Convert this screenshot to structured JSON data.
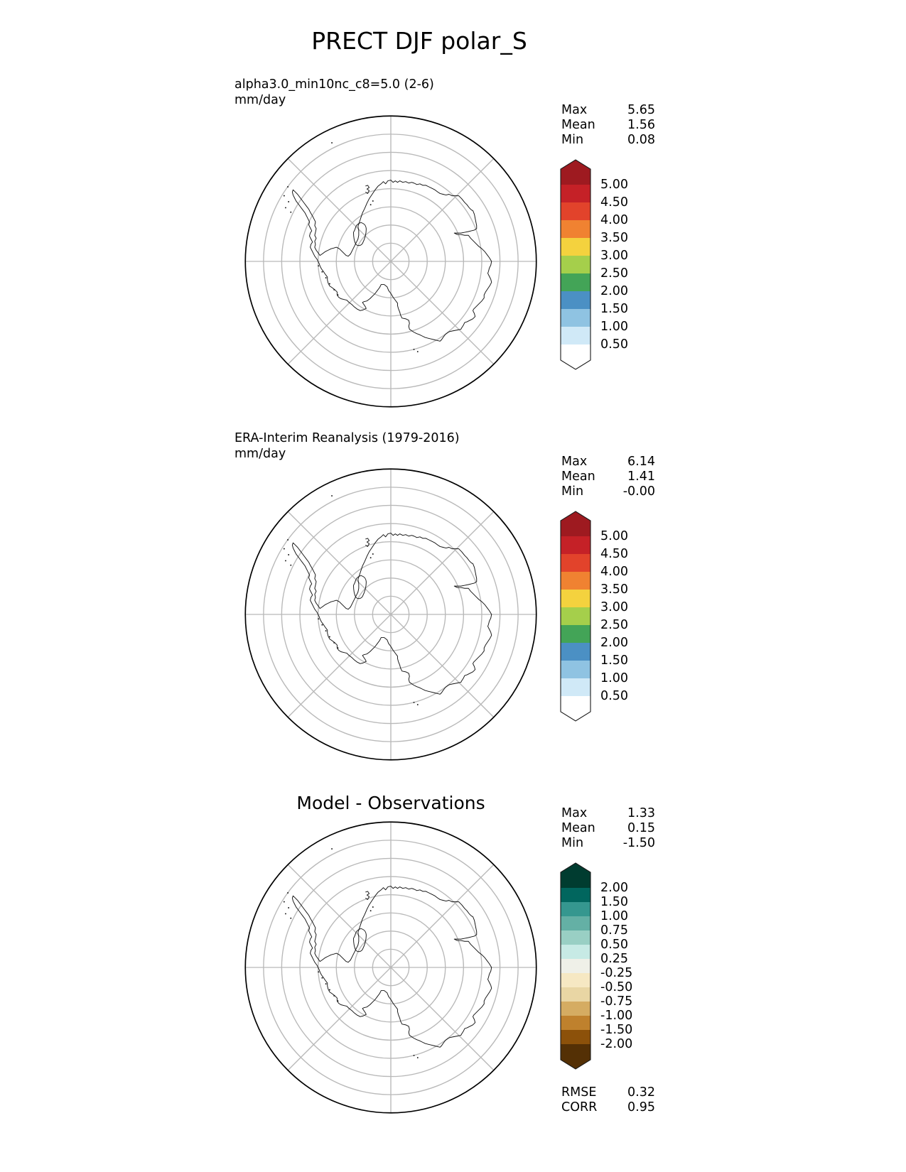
{
  "figure_title": "PRECT DJF polar_S",
  "panels": [
    {
      "id": "model",
      "subtitle": "alpha3.0_min10nc_c8=5.0 (2-6)",
      "units": "mm/day",
      "stats": [
        {
          "label": "Max",
          "value": "5.65"
        },
        {
          "label": "Mean",
          "value": "1.56"
        },
        {
          "label": "Min",
          "value": "0.08"
        }
      ],
      "colorbar": "precip"
    },
    {
      "id": "obs",
      "subtitle": "ERA-Interim Reanalysis (1979-2016)",
      "units": "mm/day",
      "stats": [
        {
          "label": "Max",
          "value": "6.14"
        },
        {
          "label": "Mean",
          "value": "1.41"
        },
        {
          "label": "Min",
          "value": "-0.00"
        }
      ],
      "colorbar": "precip"
    },
    {
      "id": "diff",
      "subtitle": "Model - Observations",
      "stats": [
        {
          "label": "Max",
          "value": "1.33"
        },
        {
          "label": "Mean",
          "value": "0.15"
        },
        {
          "label": "Min",
          "value": "-1.50"
        }
      ],
      "colorbar": "diff",
      "metrics": [
        {
          "label": "RMSE",
          "value": "0.32"
        },
        {
          "label": "CORR",
          "value": "0.95"
        }
      ]
    }
  ],
  "colorbars": {
    "precip": {
      "labels": [
        "5.00",
        "4.50",
        "4.00",
        "3.50",
        "3.00",
        "2.50",
        "2.00",
        "1.50",
        "1.00",
        "0.50"
      ],
      "colors_top_to_bottom": [
        "#9e1a20",
        "#c52127",
        "#e2432b",
        "#f08231",
        "#f4d23e",
        "#a5cf4b",
        "#43a457",
        "#4b90c4",
        "#8fc3e2",
        "#d0e9f7",
        "#ffffff"
      ],
      "extend": "both"
    },
    "diff": {
      "labels": [
        "2.00",
        "1.50",
        "1.00",
        "0.75",
        "0.50",
        "0.25",
        "-0.25",
        "-0.50",
        "-0.75",
        "-1.00",
        "-1.50",
        "-2.00"
      ],
      "colors_top_to_bottom": [
        "#003c30",
        "#01665e",
        "#35978f",
        "#64b0a5",
        "#99cfc4",
        "#c7eae5",
        "#eff0e8",
        "#f6e8c3",
        "#e9d6a4",
        "#d5ac62",
        "#bf812d",
        "#8c510a",
        "#543005"
      ],
      "extend": "both"
    }
  },
  "map": {
    "region": "Antarctica (south polar stereographic view)",
    "gridline_color": "#b9b9b9",
    "coastline_color": "#111111",
    "boundary_color": "#000000",
    "rings": 7,
    "spokes": 8
  },
  "chart_data": [
    {
      "type": "heatmap",
      "subtype": "polar-stereographic-map",
      "title": "alpha3.0_min10nc_c8=5.0 (2-6)",
      "ylabel": "mm/day",
      "region": "Antarctica / South Pole",
      "stats": {
        "max": 5.65,
        "mean": 1.56,
        "min": 0.08
      },
      "contour_levels": [
        0.5,
        1.0,
        1.5,
        2.0,
        2.5,
        3.0,
        3.5,
        4.0,
        4.5,
        5.0
      ],
      "legend_position": "right",
      "grid": "polar gridlines: 7 rings, 8 spokes"
    },
    {
      "type": "heatmap",
      "subtype": "polar-stereographic-map",
      "title": "ERA-Interim Reanalysis (1979-2016)",
      "ylabel": "mm/day",
      "region": "Antarctica / South Pole",
      "stats": {
        "max": 6.14,
        "mean": 1.41,
        "min": -0.0
      },
      "contour_levels": [
        0.5,
        1.0,
        1.5,
        2.0,
        2.5,
        3.0,
        3.5,
        4.0,
        4.5,
        5.0
      ],
      "legend_position": "right",
      "grid": "polar gridlines: 7 rings, 8 spokes"
    },
    {
      "type": "heatmap",
      "subtype": "polar-stereographic-map",
      "title": "Model - Observations",
      "region": "Antarctica / South Pole",
      "stats": {
        "max": 1.33,
        "mean": 0.15,
        "min": -1.5,
        "rmse": 0.32,
        "corr": 0.95
      },
      "contour_levels": [
        -2.0,
        -1.5,
        -1.0,
        -0.75,
        -0.5,
        -0.25,
        0.25,
        0.5,
        0.75,
        1.0,
        1.5,
        2.0
      ],
      "legend_position": "right",
      "grid": "polar gridlines: 7 rings, 8 spokes"
    }
  ]
}
